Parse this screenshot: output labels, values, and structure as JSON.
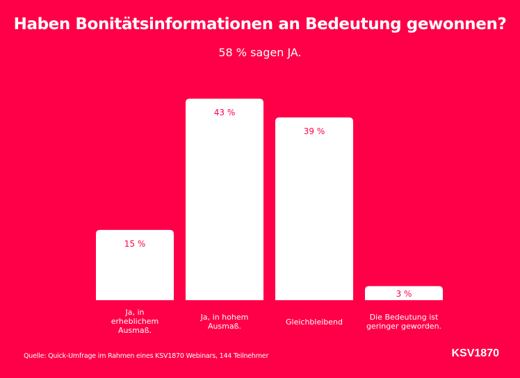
{
  "title": "Haben Bonitätsinformationen an Bedeutung gewonnen?",
  "subtitle": "58 % sagen JA.",
  "source": "Quelle: Quick-Umfrage im Rahmen eines KSV1870 Webinars, 144 Teilnehmer",
  "logo": "KSV1870",
  "colors": {
    "background": "#ff0048",
    "bar": "#ffffff",
    "label": "#ff0048"
  },
  "chart_data": {
    "type": "bar",
    "title": "Haben Bonitätsinformationen an Bedeutung gewonnen?",
    "subtitle": "58 % sagen JA.",
    "xlabel": "",
    "ylabel": "",
    "ylim": [
      0,
      43
    ],
    "grid": false,
    "unit": "%",
    "categories": [
      "Ja, in erheblichem Ausmaß.",
      "Ja, in hohem Ausmaß.",
      "Gleichbleibend",
      "Die Bedeutung ist geringer geworden."
    ],
    "values": [
      15,
      43,
      39,
      3
    ],
    "data_labels": [
      "15 %",
      "43 %",
      "39 %",
      "3 %"
    ]
  }
}
